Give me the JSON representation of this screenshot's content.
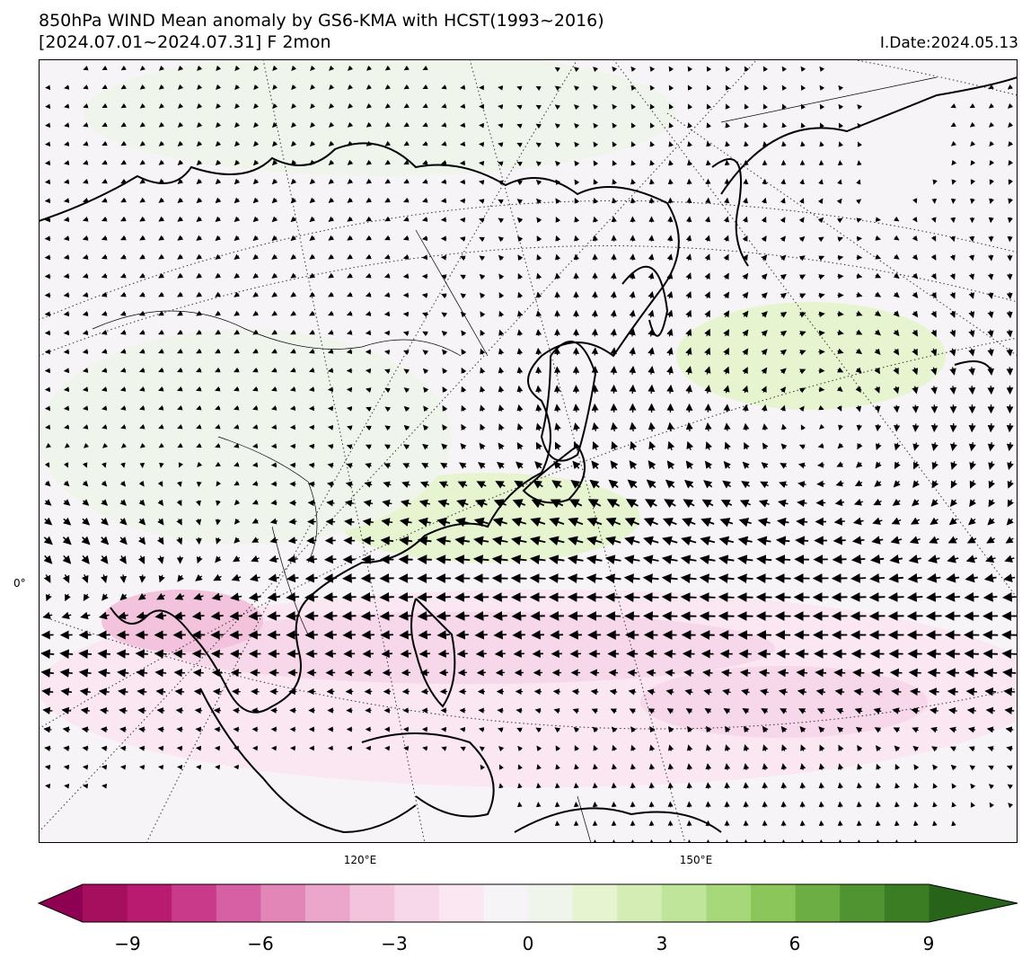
{
  "header": {
    "title_line1": "850hPa WIND Mean anomaly by GS6-KMA with HCST(1993~2016)",
    "title_line2": "[2024.07.01~2024.07.31] F 2mon",
    "init_date": "I.Date:2024.05.13"
  },
  "map": {
    "lon_labels": [
      "120°E",
      "150°E"
    ],
    "lat_labels": [
      "0°"
    ]
  },
  "colorbar": {
    "ticks": [
      "−9",
      "−6",
      "−3",
      "0",
      "3",
      "6",
      "9"
    ],
    "levels": [
      "#8e0152",
      "#a50f5e",
      "#b81b6f",
      "#c93a8a",
      "#d75fa3",
      "#e286b8",
      "#eca6cc",
      "#f3c3de",
      "#f7d7ea",
      "#fae7f1",
      "#f7f4f7",
      "#f0f5ec",
      "#e6f5d0",
      "#d3edb5",
      "#bfe59b",
      "#a6d87a",
      "#8bc65a",
      "#6cae43",
      "#4f9430",
      "#3a7d22",
      "#276419"
    ],
    "extend": "both"
  },
  "colors": {
    "background": "#f8f7f4",
    "coast": "#000000"
  }
}
